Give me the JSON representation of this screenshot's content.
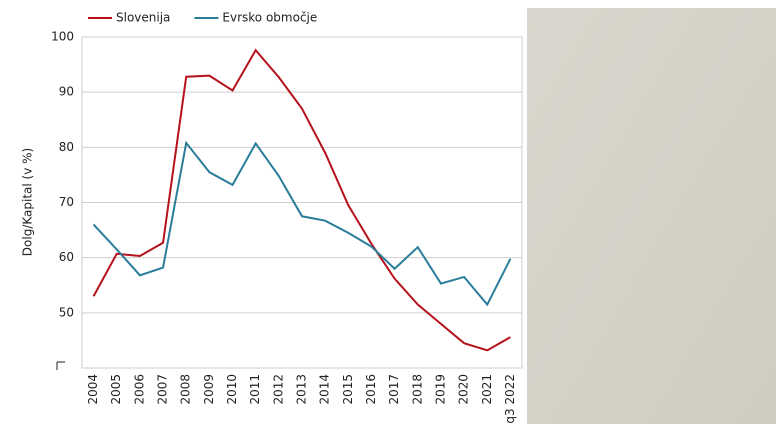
{
  "chart_data": {
    "type": "line",
    "ylabel": "Dolg/Kapital (v %)",
    "categories": [
      "2004",
      "2005",
      "2006",
      "2007",
      "2008",
      "2009",
      "2010",
      "2011",
      "2012",
      "2013",
      "2014",
      "2015",
      "2016",
      "2017",
      "2018",
      "2019",
      "2020",
      "2021",
      "q3 2022"
    ],
    "series": [
      {
        "name": "Slovenija",
        "color": "#b5121b",
        "values": [
          53,
          60.7,
          60.3,
          62.7,
          92.8,
          93,
          90.3,
          97.6,
          92.7,
          87,
          79,
          69.5,
          62.5,
          56.2,
          51.5,
          48,
          44.5,
          43.2,
          45.6
        ]
      },
      {
        "name": "Evrsko območje",
        "color": "#2a7d9a",
        "values": [
          66,
          61.5,
          56.8,
          58.2,
          80.8,
          75.5,
          73.2,
          80.7,
          74.8,
          67.5,
          66.7,
          64.5,
          62,
          58,
          61.9,
          55.3,
          56.5,
          51.5,
          59.8
        ]
      }
    ],
    "ylim": [
      40,
      100
    ],
    "yticks": [
      50,
      60,
      70,
      80,
      90,
      100
    ],
    "grid": true
  }
}
